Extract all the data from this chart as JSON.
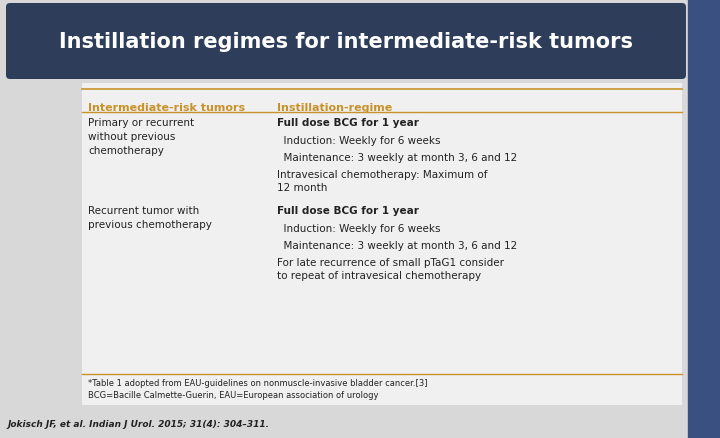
{
  "title": "Instillation regimes for intermediate-risk tumors",
  "title_bg": "#2d3d5a",
  "title_color": "#ffffff",
  "title_fontsize": 15,
  "bg_color": "#d8d8d8",
  "table_bg": "#f0f0f0",
  "header_col1": "Intermediate-risk tumors",
  "header_col2": "Instillation-regime",
  "header_color": "#c8922a",
  "col1_rows": [
    "Primary or recurrent\nwithout previous\nchemotherapy",
    "Recurrent tumor with\nprevious chemotherapy"
  ],
  "col2_rows_group1": [
    [
      "Full dose BCG for 1 year",
      true
    ],
    [
      "  Induction: Weekly for 6 weeks",
      false
    ],
    [
      "  Maintenance: 3 weekly at month 3, 6 and 12",
      false
    ],
    [
      "Intravesical chemotherapy: Maximum of\n12 month",
      false
    ]
  ],
  "col2_rows_group2": [
    [
      "Full dose BCG for 1 year",
      true
    ],
    [
      "  Induction: Weekly for 6 weeks",
      false
    ],
    [
      "  Maintenance: 3 weekly at month 3, 6 and 12",
      false
    ],
    [
      "For late recurrence of small pTaG1 consider\nto repeat of intravesical chemotherapy",
      false
    ]
  ],
  "footnote1": "*Table 1 adopted from EAU-guidelines on nonmuscle-invasive bladder cancer.[3]",
  "footnote2": "BCG=Bacille Calmette-Guerin, EAU=European association of urology",
  "citation": "Jokisch JF, et al. Indian J Urol. 2015; 31(4): 304–311.",
  "line_color": "#c8922a",
  "text_color": "#222222",
  "sidebar_color": "#3a5080"
}
